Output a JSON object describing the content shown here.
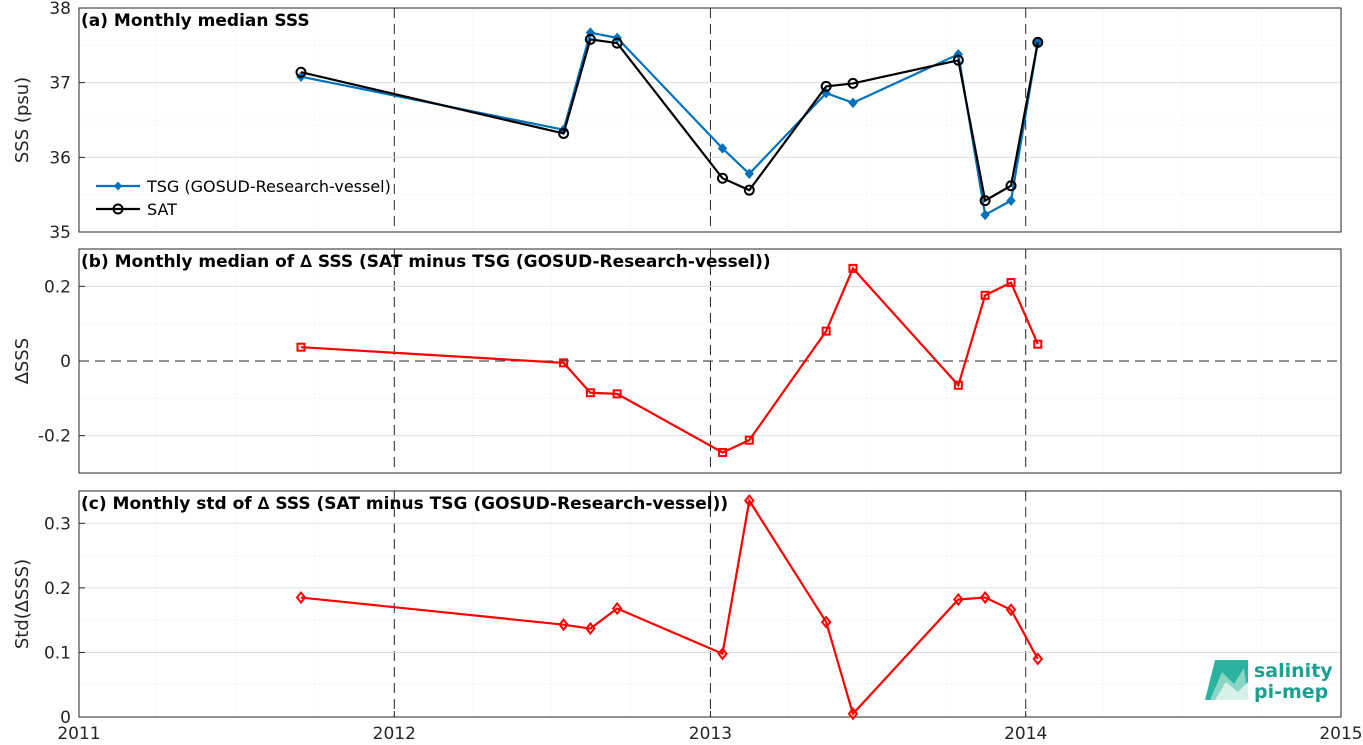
{
  "chart_data": [
    {
      "type": "line",
      "title": "(a) Monthly median SSS",
      "xlabel": "",
      "ylabel": "SSS (psu)",
      "xlim": [
        "2011-01-01",
        "2015-01-01"
      ],
      "ylim": [
        35,
        38
      ],
      "yticks": [
        "35",
        "36",
        "37",
        "38"
      ],
      "grid": true,
      "legend_position": "left",
      "series": [
        {
          "name": "TSG (GOSUD-Research-vessel)",
          "color": "#0072bd",
          "marker": "filled-diamond",
          "x": [
            "2011-09-15",
            "2012-07-15",
            "2012-08-15",
            "2012-09-15",
            "2013-01-15",
            "2013-02-15",
            "2013-05-15",
            "2013-06-15",
            "2013-10-15",
            "2013-11-15",
            "2013-12-15",
            "2014-01-15"
          ],
          "values": [
            37.08,
            36.37,
            37.67,
            37.6,
            36.12,
            35.78,
            36.86,
            36.73,
            37.38,
            35.23,
            35.42,
            37.54
          ]
        },
        {
          "name": "SAT",
          "color": "#000000",
          "marker": "open-circle",
          "x": [
            "2011-09-15",
            "2012-07-15",
            "2012-08-15",
            "2012-09-15",
            "2013-01-15",
            "2013-02-15",
            "2013-05-15",
            "2013-06-15",
            "2013-10-15",
            "2013-11-15",
            "2013-12-15",
            "2014-01-15"
          ],
          "values": [
            37.14,
            36.32,
            37.58,
            37.53,
            35.72,
            35.56,
            36.95,
            36.99,
            37.3,
            35.42,
            35.62,
            37.54
          ]
        }
      ]
    },
    {
      "type": "line",
      "title": "(b) Monthly median of ∆ SSS (SAT minus TSG (GOSUD-Research-vessel))",
      "xlabel": "",
      "ylabel": "∆SSS",
      "xlim": [
        "2011-01-01",
        "2015-01-01"
      ],
      "ylim": [
        -0.3,
        0.3
      ],
      "yticks": [
        "-0.2",
        "0",
        "0.2"
      ],
      "grid": true,
      "series": [
        {
          "color": "#ff0000",
          "marker": "open-square",
          "x": [
            "2011-09-15",
            "2012-07-15",
            "2012-08-15",
            "2012-09-15",
            "2013-01-15",
            "2013-02-15",
            "2013-05-15",
            "2013-06-15",
            "2013-10-15",
            "2013-11-15",
            "2013-12-15",
            "2014-01-15"
          ],
          "values": [
            0.037,
            -0.005,
            -0.085,
            -0.088,
            -0.245,
            -0.212,
            0.08,
            0.248,
            -0.065,
            0.176,
            0.21,
            0.045
          ]
        }
      ]
    },
    {
      "type": "line",
      "title": "(c) Monthly std of ∆ SSS (SAT minus TSG (GOSUD-Research-vessel))",
      "xlabel": "",
      "ylabel": "Std(∆SSS)",
      "xlim": [
        "2011-01-01",
        "2015-01-01"
      ],
      "ylim": [
        0,
        0.35
      ],
      "yticks": [
        "0",
        "0.1",
        "0.2",
        "0.3"
      ],
      "xticks": [
        "2011",
        "2012",
        "2013",
        "2014",
        "2015"
      ],
      "grid": true,
      "series": [
        {
          "color": "#ff0000",
          "marker": "open-diamond",
          "x": [
            "2011-09-15",
            "2012-07-15",
            "2012-08-15",
            "2012-09-15",
            "2013-01-15",
            "2013-02-15",
            "2013-05-15",
            "2013-06-15",
            "2013-10-15",
            "2013-11-15",
            "2013-12-15",
            "2014-01-15"
          ],
          "values": [
            0.185,
            0.143,
            0.137,
            0.168,
            0.098,
            0.335,
            0.147,
            0.005,
            0.182,
            0.185,
            0.166,
            0.09
          ]
        }
      ]
    }
  ],
  "logo": {
    "line1": "salinity",
    "line2": "pi-mep",
    "color": "#1aa08f"
  }
}
